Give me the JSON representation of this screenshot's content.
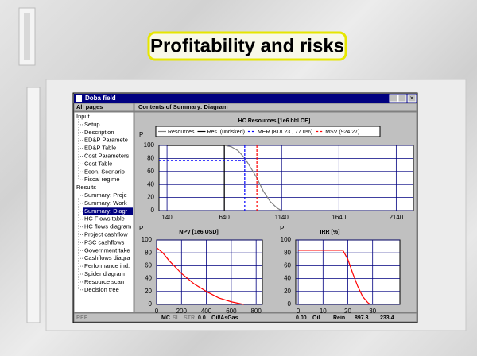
{
  "slide": {
    "title": "Profitability and risks"
  },
  "window": {
    "title": "Doba field",
    "sidebar_header": "All pages",
    "content_header": "Contents of Summary: Diagram",
    "selected": 12,
    "tree": [
      {
        "label": "Input",
        "level": 0
      },
      {
        "label": "Setup",
        "level": 1
      },
      {
        "label": "Description",
        "level": 1
      },
      {
        "label": "ED&P Paramete",
        "level": 1
      },
      {
        "label": "ED&P Table",
        "level": 1
      },
      {
        "label": "Cost Parameters",
        "level": 1
      },
      {
        "label": "Cost Table",
        "level": 1
      },
      {
        "label": "Econ. Scenario",
        "level": 1
      },
      {
        "label": "Fiscal regime",
        "level": 1
      },
      {
        "label": "Results",
        "level": 0
      },
      {
        "label": "Summary: Proje",
        "level": 1
      },
      {
        "label": "Summary: Work",
        "level": 1
      },
      {
        "label": "Summary: Diagr",
        "level": 1
      },
      {
        "label": "HC Flows table",
        "level": 1
      },
      {
        "label": "HC flows diagram",
        "level": 1
      },
      {
        "label": "Project cashflow",
        "level": 1
      },
      {
        "label": "PSC cashflows",
        "level": 1
      },
      {
        "label": "Government take",
        "level": 1
      },
      {
        "label": "Cashflows diagra",
        "level": 1
      },
      {
        "label": "Performance ind.",
        "level": 1
      },
      {
        "label": "Spider diagram",
        "level": 1
      },
      {
        "label": "Resource scan",
        "level": 1
      },
      {
        "label": "Decision tree",
        "level": 1
      }
    ],
    "status_bar": [
      "REF",
      "MC",
      "SI",
      "STR",
      "0.0",
      "Oil/AsGas",
      "0.00",
      "Oil",
      "Rein",
      "897.3",
      "233.4"
    ]
  },
  "chart_data": [
    {
      "type": "line",
      "title": "HC Resources [1e6 bbl OE]",
      "y_label": "P",
      "grid": true,
      "xlim": [
        70,
        2290
      ],
      "xticks": [
        140,
        640,
        1140,
        1640,
        2140
      ],
      "ylim": [
        0,
        100
      ],
      "yticks": [
        0,
        20,
        40,
        60,
        80,
        100
      ],
      "series": [
        {
          "name": "Resources",
          "color": "#808080",
          "x": [
            640,
            700,
            760,
            820,
            880,
            924,
            980,
            1040,
            1100,
            1140
          ],
          "values": [
            100,
            98,
            92,
            80,
            63,
            50,
            30,
            14,
            4,
            0
          ]
        },
        {
          "name": "Res. (unrisked)",
          "color": "#000000",
          "x": [
            140,
            640,
            640
          ],
          "values": [
            100,
            100,
            0
          ]
        }
      ],
      "markers": [
        {
          "name": "MER (818.23 , 77.0%)",
          "color": "#0000ff",
          "x": 818.23,
          "y": 77.0
        },
        {
          "name": "MSV (924.27)",
          "color": "#ff0000",
          "x": 924.27
        }
      ]
    },
    {
      "type": "line",
      "title": "NPV [1e6 USD]",
      "y_label": "P",
      "grid": true,
      "xlim": [
        0,
        850
      ],
      "xticks": [
        0,
        200,
        400,
        600,
        800
      ],
      "ylim": [
        0,
        100
      ],
      "yticks": [
        0,
        20,
        40,
        60,
        80,
        100
      ],
      "series": [
        {
          "color": "#ff0000",
          "x": [
            0,
            50,
            100,
            200,
            300,
            400,
            500,
            600,
            700
          ],
          "values": [
            88,
            80,
            68,
            48,
            32,
            20,
            10,
            4,
            0
          ]
        }
      ]
    },
    {
      "type": "line",
      "title": "IRR [%]",
      "y_label": "P",
      "grid": true,
      "xlim": [
        -1,
        41
      ],
      "xticks": [
        0,
        10,
        20,
        30
      ],
      "ylim": [
        0,
        100
      ],
      "yticks": [
        0,
        20,
        40,
        60,
        80,
        100
      ],
      "series": [
        {
          "color": "#ff0000",
          "x": [
            0,
            18,
            20,
            22,
            24,
            26,
            28,
            29
          ],
          "values": [
            84,
            84,
            70,
            48,
            28,
            12,
            3,
            0
          ]
        }
      ]
    }
  ]
}
